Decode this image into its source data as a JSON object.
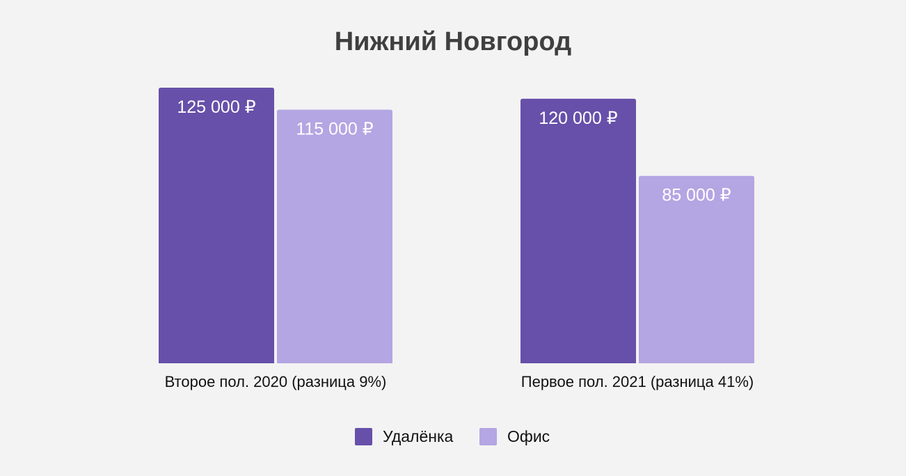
{
  "chart_data": {
    "type": "bar",
    "title": "Нижний Новгород",
    "categories": [
      "Второе пол. 2020 (разница 9%)",
      "Первое пол. 2021 (разница 41%)"
    ],
    "series": [
      {
        "name": "Удалёнка",
        "color": "#6750a9",
        "values": [
          125000,
          120000
        ],
        "labels": [
          "125 000 ₽",
          "120 000 ₽"
        ]
      },
      {
        "name": "Офис",
        "color": "#b4a5e3",
        "values": [
          115000,
          85000
        ],
        "labels": [
          "115 000 ₽",
          "85 000 ₽"
        ]
      }
    ],
    "ylim": [
      0,
      125000
    ],
    "grid": false,
    "legend_position": "bottom"
  }
}
